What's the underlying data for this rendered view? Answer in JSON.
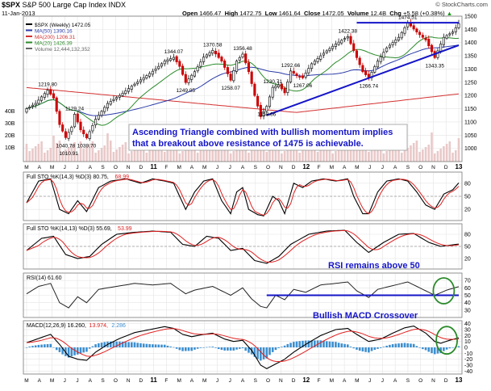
{
  "header": {
    "symbol": "$SPX",
    "name": "S&P 500 Large Cap Index",
    "exchange": "INDX",
    "date": "11-Jan-2013",
    "brand": "© StockCharts.com",
    "ohlc_label_open": "Open",
    "open": "1466.47",
    "ohlc_label_high": "High",
    "high": "1472.75",
    "ohlc_label_low": "Low",
    "low": "1461.64",
    "ohlc_label_close": "Close",
    "close": "1472.05",
    "volume_label": "Volume",
    "volume": "12.4B",
    "chg_label": "Chg",
    "chg": "+5.58 (+0.38%)",
    "up_arrow": "▲"
  },
  "legend": {
    "main": "$SPX (Weekly) 1472.05",
    "ma50": "MA(50) 1390.16",
    "ma200": "MA(200) 1206.31",
    "ma20": "MA(20) 1426.39",
    "volume": "Volume 12,444,132,352"
  },
  "colors": {
    "up": "#1a1a1a",
    "down": "#cc0000",
    "ma20": "#2a8a2a",
    "ma50": "#2b3ba8",
    "ma200": "#d43030",
    "trend": "#1515c8",
    "annot": "#1515c8",
    "circle": "#2a8a2a",
    "signal": "#e02020",
    "hist": "#3d8fcf",
    "grid": "#e4e4e4"
  },
  "annotations": {
    "box_line1": "Ascending Triangle combined with bullish momentum implies",
    "box_line2": "that a breakout above resistance of 1475 is achievable.",
    "rsi_note": "RSI remains above 50",
    "macd_note": "Bullish MACD Crossover"
  },
  "time_axis": {
    "labels": [
      "M",
      "A",
      "M",
      "J",
      "J",
      "A",
      "S",
      "O",
      "N",
      "D",
      "11",
      "F",
      "M",
      "A",
      "M",
      "J",
      "J",
      "A",
      "S",
      "O",
      "N",
      "D",
      "12",
      "F",
      "M",
      "A",
      "M",
      "J",
      "J",
      "A",
      "S",
      "O",
      "N",
      "D",
      "13"
    ]
  },
  "chart_data": [
    {
      "type": "candlestick",
      "title": "$SPX (Weekly)",
      "ylim": [
        950,
        1500
      ],
      "yticks": [
        1000,
        1050,
        1100,
        1150,
        1200,
        1250,
        1300,
        1350,
        1400,
        1450,
        1500
      ],
      "volume_ticks": [
        "40B",
        "30B",
        "20B",
        "10B"
      ],
      "price_anchors": [
        [
          0,
          1150
        ],
        [
          3,
          1170
        ],
        [
          7,
          1219.8
        ],
        [
          9,
          1190
        ],
        [
          11,
          1090
        ],
        [
          13,
          1040.78
        ],
        [
          15,
          1080
        ],
        [
          16,
          1129.24
        ],
        [
          18,
          1070
        ],
        [
          20,
          1039.7
        ],
        [
          23,
          1110
        ],
        [
          27,
          1170
        ],
        [
          31,
          1200
        ],
        [
          35,
          1235
        ],
        [
          40,
          1275
        ],
        [
          43,
          1300
        ],
        [
          46,
          1330
        ],
        [
          49,
          1344.07
        ],
        [
          51,
          1310
        ],
        [
          53,
          1249.05
        ],
        [
          56,
          1290
        ],
        [
          59,
          1345
        ],
        [
          62,
          1370.58
        ],
        [
          65,
          1330
        ],
        [
          68,
          1258.07
        ],
        [
          70,
          1330
        ],
        [
          72,
          1356.48
        ],
        [
          74,
          1290
        ],
        [
          76,
          1200
        ],
        [
          78,
          1120
        ],
        [
          80,
          1158.66
        ],
        [
          82,
          1230.71
        ],
        [
          84,
          1240
        ],
        [
          86,
          1210
        ],
        [
          88,
          1292.66
        ],
        [
          90,
          1275
        ],
        [
          92,
          1267.06
        ],
        [
          95,
          1320
        ],
        [
          99,
          1360
        ],
        [
          103,
          1395
        ],
        [
          107,
          1422.38
        ],
        [
          109,
          1370
        ],
        [
          112,
          1290
        ],
        [
          114,
          1266.74
        ],
        [
          117,
          1330
        ],
        [
          120,
          1380
        ],
        [
          124,
          1420
        ],
        [
          127,
          1474.51
        ],
        [
          130,
          1440
        ],
        [
          133,
          1410
        ],
        [
          136,
          1343.35
        ],
        [
          139,
          1420
        ],
        [
          142,
          1440
        ],
        [
          144,
          1472.05
        ]
      ],
      "labels": [
        {
          "i": 7,
          "value": "1219.80"
        },
        {
          "i": 16,
          "value": "1129.24"
        },
        {
          "i": 13,
          "value": "1040.78"
        },
        {
          "i": 14,
          "value": "1010.91"
        },
        {
          "i": 20,
          "value": "1039.70"
        },
        {
          "i": 49,
          "value": "1344.07"
        },
        {
          "i": 53,
          "value": "1249.05"
        },
        {
          "i": 62,
          "value": "1370.58"
        },
        {
          "i": 68,
          "value": "1258.07"
        },
        {
          "i": 72,
          "value": "1356.48"
        },
        {
          "i": 82,
          "value": "1230.71"
        },
        {
          "i": 80,
          "value": "1158.66"
        },
        {
          "i": 88,
          "value": "1292.66"
        },
        {
          "i": 92,
          "value": "1267.06"
        },
        {
          "i": 107,
          "value": "1422.38"
        },
        {
          "i": 114,
          "value": "1266.74"
        },
        {
          "i": 127,
          "value": "1474.51"
        },
        {
          "i": 136,
          "value": "1343.35"
        }
      ],
      "resistance": 1475,
      "support_trendline": [
        [
          80,
          1125
        ],
        [
          144,
          1390
        ]
      ]
    },
    {
      "type": "line",
      "title": "Full STO %K(14,3) %D(3) 80.75, 68.99",
      "label_main": "Full STO %K(14,3) %D(3) 80.75,",
      "label_sig": "68.99",
      "ylim": [
        0,
        100
      ],
      "yticks": [
        80,
        50,
        20
      ],
      "k_anchors": [
        [
          0,
          35
        ],
        [
          4,
          85
        ],
        [
          8,
          90
        ],
        [
          11,
          20
        ],
        [
          14,
          10
        ],
        [
          17,
          40
        ],
        [
          20,
          15
        ],
        [
          24,
          70
        ],
        [
          28,
          85
        ],
        [
          33,
          90
        ],
        [
          38,
          80
        ],
        [
          42,
          90
        ],
        [
          46,
          85
        ],
        [
          49,
          80
        ],
        [
          51,
          50
        ],
        [
          53,
          20
        ],
        [
          56,
          60
        ],
        [
          59,
          85
        ],
        [
          62,
          90
        ],
        [
          65,
          40
        ],
        [
          68,
          10
        ],
        [
          70,
          60
        ],
        [
          72,
          70
        ],
        [
          74,
          20
        ],
        [
          77,
          8
        ],
        [
          79,
          5
        ],
        [
          82,
          50
        ],
        [
          84,
          40
        ],
        [
          86,
          10
        ],
        [
          89,
          80
        ],
        [
          92,
          70
        ],
        [
          95,
          85
        ],
        [
          99,
          90
        ],
        [
          103,
          85
        ],
        [
          107,
          90
        ],
        [
          109,
          50
        ],
        [
          112,
          10
        ],
        [
          114,
          10
        ],
        [
          117,
          60
        ],
        [
          120,
          85
        ],
        [
          124,
          90
        ],
        [
          127,
          85
        ],
        [
          130,
          60
        ],
        [
          133,
          30
        ],
        [
          136,
          20
        ],
        [
          139,
          55
        ],
        [
          142,
          65
        ],
        [
          144,
          80.75
        ]
      ]
    },
    {
      "type": "line",
      "title": "Full STO %K(14,13) %D(3) 55.69, 53.99",
      "label_main": "Full STO %K(14,13) %D(3) 55.69,",
      "label_sig": "53.99",
      "ylim": [
        0,
        100
      ],
      "yticks": [
        80,
        50,
        20
      ],
      "k_anchors": [
        [
          0,
          40
        ],
        [
          5,
          70
        ],
        [
          9,
          75
        ],
        [
          13,
          30
        ],
        [
          17,
          20
        ],
        [
          21,
          25
        ],
        [
          25,
          55
        ],
        [
          30,
          80
        ],
        [
          36,
          85
        ],
        [
          42,
          88
        ],
        [
          48,
          85
        ],
        [
          52,
          55
        ],
        [
          56,
          50
        ],
        [
          60,
          75
        ],
        [
          64,
          70
        ],
        [
          68,
          40
        ],
        [
          72,
          45
        ],
        [
          76,
          15
        ],
        [
          80,
          8
        ],
        [
          84,
          25
        ],
        [
          88,
          55
        ],
        [
          94,
          80
        ],
        [
          100,
          88
        ],
        [
          106,
          90
        ],
        [
          110,
          60
        ],
        [
          114,
          35
        ],
        [
          119,
          60
        ],
        [
          124,
          80
        ],
        [
          129,
          82
        ],
        [
          134,
          60
        ],
        [
          138,
          50
        ],
        [
          142,
          54
        ],
        [
          144,
          55.69
        ]
      ]
    },
    {
      "type": "line",
      "title": "RSI(14) 61.60",
      "label_main": "RSI(14) 61.60",
      "ylim": [
        20,
        80
      ],
      "yticks": [
        70,
        60,
        50,
        40,
        30
      ],
      "baseline": 50,
      "anchors": [
        [
          0,
          52
        ],
        [
          4,
          62
        ],
        [
          8,
          66
        ],
        [
          11,
          40
        ],
        [
          14,
          33
        ],
        [
          17,
          48
        ],
        [
          20,
          40
        ],
        [
          24,
          58
        ],
        [
          30,
          62
        ],
        [
          36,
          66
        ],
        [
          42,
          64
        ],
        [
          48,
          66
        ],
        [
          53,
          52
        ],
        [
          56,
          57
        ],
        [
          62,
          62
        ],
        [
          68,
          50
        ],
        [
          72,
          60
        ],
        [
          75,
          45
        ],
        [
          78,
          35
        ],
        [
          80,
          33
        ],
        [
          83,
          50
        ],
        [
          86,
          44
        ],
        [
          89,
          58
        ],
        [
          93,
          54
        ],
        [
          98,
          64
        ],
        [
          103,
          66
        ],
        [
          107,
          68
        ],
        [
          110,
          56
        ],
        [
          114,
          47
        ],
        [
          117,
          58
        ],
        [
          122,
          63
        ],
        [
          127,
          68
        ],
        [
          131,
          60
        ],
        [
          136,
          50
        ],
        [
          140,
          57
        ],
        [
          144,
          61.6
        ]
      ]
    },
    {
      "type": "macd",
      "title": "MACD(12,26,9) 16.260, 13.974, 2.286",
      "label_main": "MACD(12,26,9) 16.260,",
      "label_sig": "13.974,",
      "label_hist": "2.286",
      "ylim": [
        -45,
        45
      ],
      "yticks": [
        40,
        30,
        20,
        10,
        0,
        -10,
        -20,
        -30,
        -40
      ],
      "macd_anchors": [
        [
          0,
          8
        ],
        [
          4,
          15
        ],
        [
          8,
          22
        ],
        [
          11,
          5
        ],
        [
          14,
          -15
        ],
        [
          17,
          -20
        ],
        [
          20,
          -22
        ],
        [
          23,
          -8
        ],
        [
          27,
          5
        ],
        [
          31,
          15
        ],
        [
          36,
          25
        ],
        [
          41,
          30
        ],
        [
          46,
          35
        ],
        [
          49,
          32
        ],
        [
          52,
          22
        ],
        [
          55,
          18
        ],
        [
          59,
          22
        ],
        [
          62,
          24
        ],
        [
          66,
          14
        ],
        [
          69,
          10
        ],
        [
          72,
          12
        ],
        [
          75,
          -5
        ],
        [
          78,
          -30
        ],
        [
          80,
          -36
        ],
        [
          83,
          -28
        ],
        [
          86,
          -20
        ],
        [
          89,
          -8
        ],
        [
          93,
          5
        ],
        [
          98,
          20
        ],
        [
          103,
          30
        ],
        [
          107,
          32
        ],
        [
          110,
          22
        ],
        [
          114,
          10
        ],
        [
          118,
          14
        ],
        [
          122,
          24
        ],
        [
          126,
          33
        ],
        [
          129,
          36
        ],
        [
          133,
          24
        ],
        [
          136,
          10
        ],
        [
          138,
          7
        ],
        [
          141,
          12
        ],
        [
          144,
          16.26
        ]
      ]
    }
  ]
}
